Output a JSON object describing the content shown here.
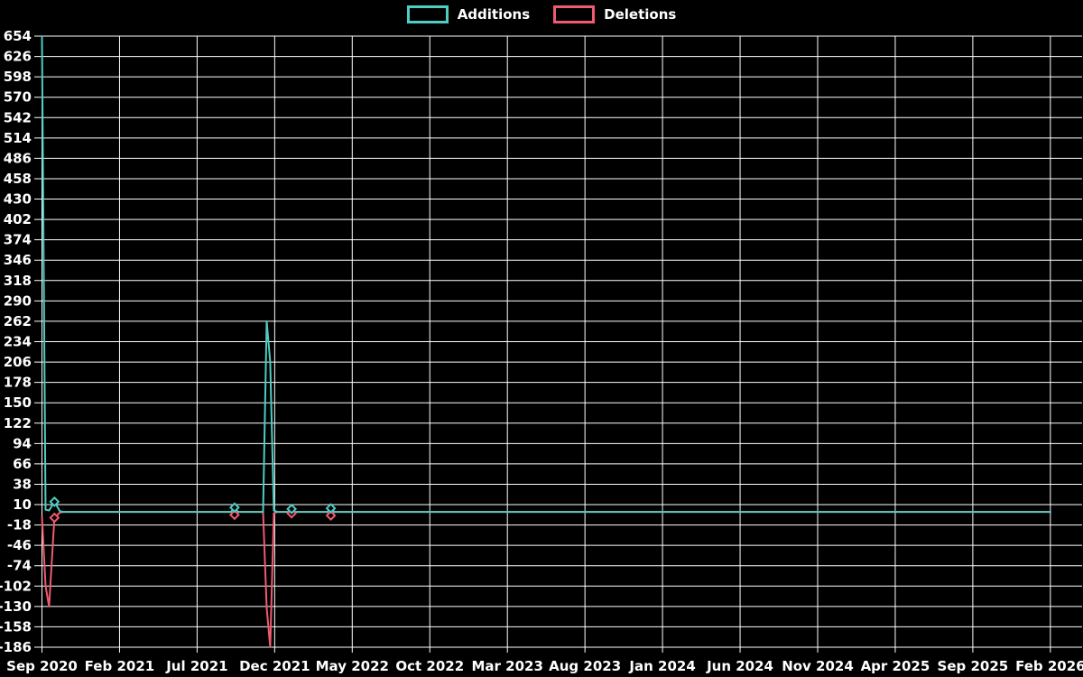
{
  "chart_data": {
    "type": "line",
    "title": "",
    "background": "#000000",
    "grid_color": "#ffffff",
    "text_color": "#ffffff",
    "legend_position": "top-center",
    "ylim": [
      -186,
      654
    ],
    "ytick_step": 28,
    "x_unit": "weeks since Sep 2020",
    "x_tick_labels": [
      "Sep 2020",
      "Feb 2021",
      "Jul 2021",
      "Dec 2021",
      "May 2022",
      "Oct 2022",
      "Mar 2023",
      "Aug 2023",
      "Jan 2024",
      "Jun 2024",
      "Nov 2024",
      "Apr 2025",
      "Sep 2025",
      "Feb 2026"
    ],
    "x_tick_step_weeks": 21.75,
    "x_data_max_week": 283,
    "grid": true,
    "series": [
      {
        "name": "Additions",
        "color": "#4ecdc4",
        "marker_weeks": [
          3.5,
          54,
          70,
          81
        ],
        "points": [
          [
            0,
            654
          ],
          [
            1,
            3
          ],
          [
            2,
            2
          ],
          [
            3.5,
            14
          ],
          [
            5,
            1
          ],
          [
            6,
            0
          ],
          [
            53,
            0
          ],
          [
            54,
            6
          ],
          [
            55,
            0
          ],
          [
            62,
            0
          ],
          [
            63,
            262
          ],
          [
            64,
            206
          ],
          [
            65,
            2
          ],
          [
            66,
            0
          ],
          [
            69,
            0
          ],
          [
            70,
            4
          ],
          [
            71,
            0
          ],
          [
            80,
            0
          ],
          [
            81,
            5
          ],
          [
            82,
            0
          ],
          [
            283,
            0
          ]
        ]
      },
      {
        "name": "Deletions",
        "color": "#ef5b70",
        "marker_weeks": [
          3.5,
          54,
          70,
          81
        ],
        "points": [
          [
            0,
            -6
          ],
          [
            1,
            -102
          ],
          [
            2,
            -130
          ],
          [
            3.5,
            -8
          ],
          [
            5,
            -1
          ],
          [
            6,
            0
          ],
          [
            53,
            0
          ],
          [
            54,
            -4
          ],
          [
            55,
            0
          ],
          [
            62,
            0
          ],
          [
            63,
            -132
          ],
          [
            64,
            -186
          ],
          [
            65,
            -2
          ],
          [
            66,
            0
          ],
          [
            69,
            0
          ],
          [
            70,
            -2
          ],
          [
            71,
            0
          ],
          [
            80,
            0
          ],
          [
            81,
            -5
          ],
          [
            82,
            0
          ],
          [
            283,
            0
          ]
        ]
      }
    ]
  }
}
